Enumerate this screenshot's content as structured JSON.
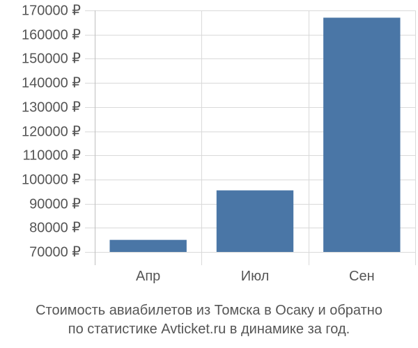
{
  "chart_data": {
    "type": "bar",
    "categories": [
      "Апр",
      "Июл",
      "Сен"
    ],
    "values": [
      75000,
      95500,
      167000
    ],
    "ylim": [
      70000,
      170000
    ],
    "yticks": [
      70000,
      80000,
      90000,
      100000,
      110000,
      120000,
      130000,
      140000,
      150000,
      160000,
      170000
    ],
    "ytick_labels": [
      "70000 ₽",
      "80000 ₽",
      "90000 ₽",
      "100000 ₽",
      "110000 ₽",
      "120000 ₽",
      "130000 ₽",
      "140000 ₽",
      "150000 ₽",
      "160000 ₽",
      "170000 ₽"
    ],
    "grid": true,
    "legend": "none",
    "bar_color": "#4a76a6",
    "grid_color": "#d9d9d9",
    "axis_color": "#bfbfbf",
    "caption_line1": "Стоимость авиабилетов из Томска в Осаку и обратно",
    "caption_line2": "по статистике Avticket.ru в динамике за год."
  }
}
